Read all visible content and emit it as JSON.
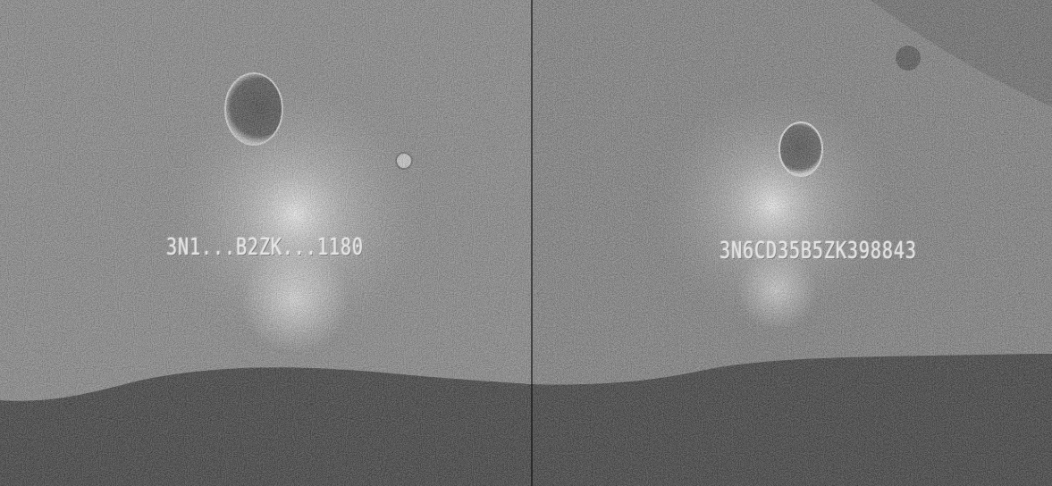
{
  "scene": {
    "left_panel": {
      "stamped_text": "3N1...B2ZK...1180"
    },
    "right_panel": {
      "stamped_text": "3N6CD35B5ZK398843"
    }
  }
}
